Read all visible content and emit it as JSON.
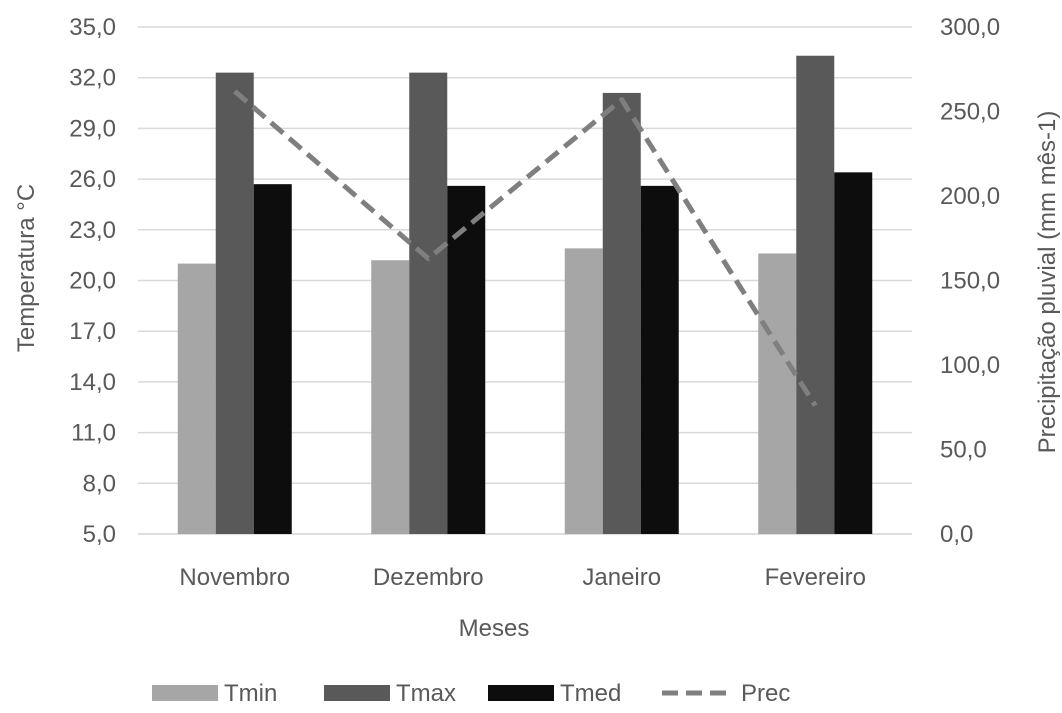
{
  "chart_data": {
    "type": "bar",
    "categories": [
      "Novembro",
      "Dezembro",
      "Janeiro",
      "Fevereiro"
    ],
    "series": [
      {
        "name": "Tmin",
        "type": "bar",
        "axis": "left",
        "color": "#a6a6a6",
        "values": [
          21.0,
          21.2,
          21.9,
          21.6
        ]
      },
      {
        "name": "Tmax",
        "type": "bar",
        "axis": "left",
        "color": "#595959",
        "values": [
          32.3,
          32.3,
          31.1,
          33.3
        ]
      },
      {
        "name": "Tmed",
        "type": "bar",
        "axis": "left",
        "color": "#0d0d0d",
        "values": [
          25.7,
          25.6,
          25.6,
          26.4
        ]
      },
      {
        "name": "Prec",
        "type": "line",
        "axis": "right",
        "style": "dashed",
        "color": "#7f7f7f",
        "values": [
          262,
          163,
          257,
          76
        ]
      }
    ],
    "xlabel": "Meses",
    "ylabel": "Temperatura °C",
    "y2label": "Precipitação pluvial (mm mês-1)",
    "ylim": [
      5,
      35
    ],
    "y2lim": [
      0,
      300
    ],
    "yticks": [
      "5,0",
      "8,0",
      "11,0",
      "14,0",
      "17,0",
      "20,0",
      "23,0",
      "26,0",
      "29,0",
      "32,0",
      "35,0"
    ],
    "y2ticks": [
      "0,0",
      "50,0",
      "100,0",
      "150,0",
      "200,0",
      "250,0",
      "300,0"
    ],
    "grid": true,
    "legend_position": "bottom"
  }
}
